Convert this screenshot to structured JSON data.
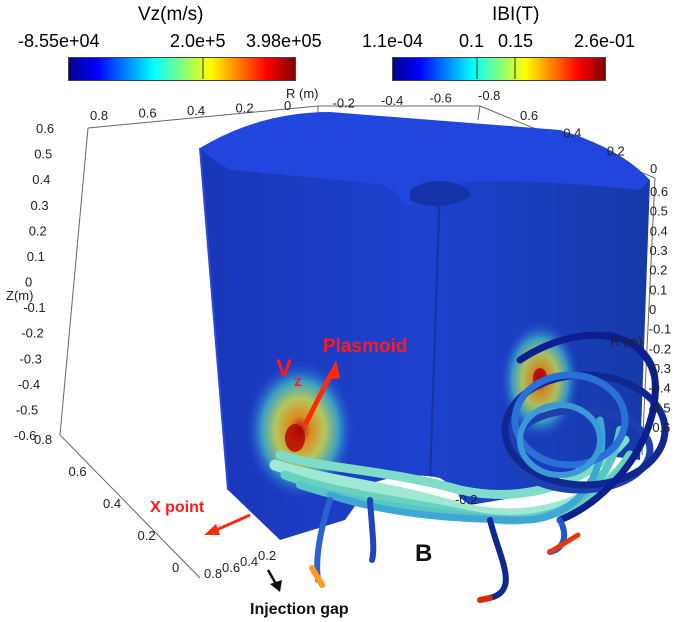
{
  "colorbar_vz": {
    "title": "Vz(m/s)",
    "min": "-8.55e+04",
    "mid": "2.0e+5",
    "max": "3.98e+05",
    "colormap": "jet"
  },
  "colorbar_b": {
    "title": "IBI(T)",
    "min": "1.1e-04",
    "mid1": "0.1",
    "mid2": "0.15",
    "max": "2.6e-01",
    "colormap": "jet"
  },
  "axes": {
    "r_label": "R (m)",
    "z_label": "Z(m)",
    "r_label_right": "R (m)",
    "top_ticks": [
      "0.8",
      "0.6",
      "0.4",
      "0.2",
      "0",
      "-0.2",
      "-0.4",
      "-0.6",
      "-0.8"
    ],
    "right_top_ticks": [
      "0.6",
      "0.4",
      "0.2",
      "0"
    ],
    "z_ticks": [
      "0.6",
      "0.5",
      "0.4",
      "0.3",
      "0.2",
      "0.1",
      "0",
      "-0.1",
      "-0.2",
      "-0.3",
      "-0.4",
      "-0.5",
      "-0.6"
    ],
    "right_z_ticks": [
      "0.6",
      "0.5",
      "0.4",
      "0.3",
      "0.2",
      "0.1",
      "0",
      "-0.1",
      "-0.2",
      "-0.3",
      "-0.4",
      "-0.5",
      "-0.6"
    ],
    "bottom_left_ticks": [
      "0.8",
      "0.6",
      "0.4",
      "0.2",
      "0"
    ],
    "bottom_ticks": [
      "0.8",
      "0.6",
      "0.4",
      "0.2"
    ],
    "bottom_mid_tick": "-0.2"
  },
  "annotations": {
    "plasmoid": "Plasmoid",
    "vz_main": "V",
    "vz_sub": "z",
    "x_point": "X point",
    "b_label": "B",
    "injection_gap": "Injection gap"
  },
  "colors": {
    "body_blue": "#1b3fc9",
    "top_face": "#2140d8",
    "tube_cyan": "#7fe3c6",
    "tube_dark": "#0b1f8f",
    "annotation_red": "#ff1a1a"
  }
}
